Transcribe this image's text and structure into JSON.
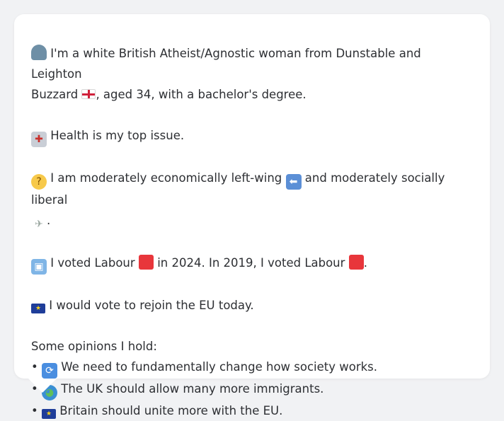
{
  "profile": {
    "intro_a": "I'm a white British Atheist/Agnostic woman from Dunstable and Leighton",
    "intro_b": "Buzzard",
    "intro_c": ", aged 34, with a bachelor's degree.",
    "health": "Health is my top issue.",
    "econ_a": "I am moderately economically left-wing",
    "econ_b": "and moderately socially liberal",
    "econ_c": ".",
    "vote_a": "I voted Labour",
    "vote_b": "in 2024. In 2019, I voted Labour",
    "vote_c": ".",
    "eu": "I would vote to rejoin the EU today.",
    "opinions_header": "Some opinions I hold:",
    "opinions": [
      "We need to fundamentally change how society works.",
      "The UK should allow many more immigrants.",
      "Britain should unite more with the EU."
    ],
    "bullet": "•"
  },
  "icons": {
    "person": "person-icon",
    "england_flag": "england-flag-icon",
    "hospital": "hospital-icon",
    "thinking": "thinking-face-icon",
    "left_arrow": "left-arrow-icon",
    "dove": "dove-icon",
    "ballot": "ballot-box-icon",
    "labour_red": "red-square-icon",
    "eu_flag": "eu-flag-icon",
    "cycle": "arrows-cycle-icon",
    "globe": "globe-icon"
  }
}
